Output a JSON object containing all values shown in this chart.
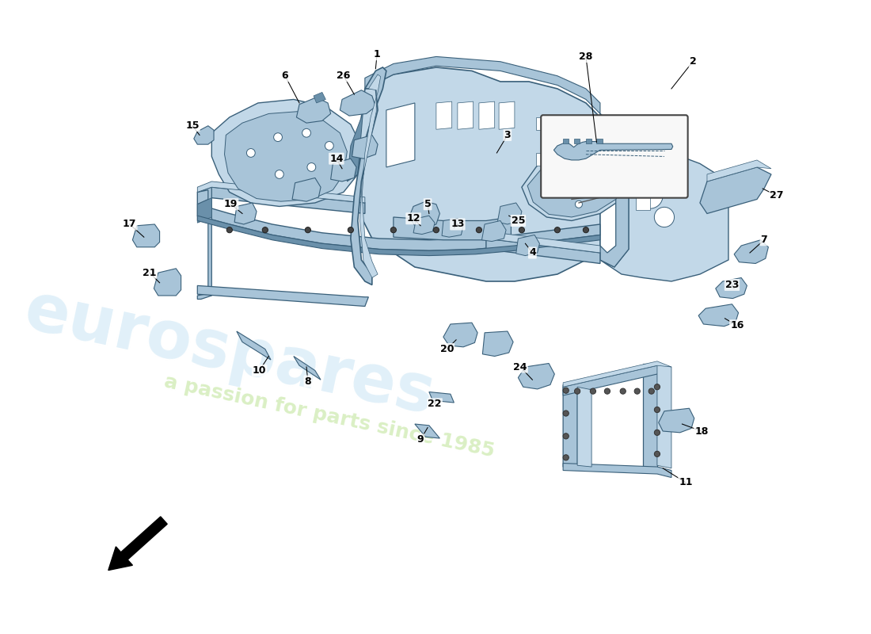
{
  "bg": "#ffffff",
  "mc": "#a8c4d8",
  "lc": "#c2d8e8",
  "dc": "#6a90aa",
  "ec": "#3a607a",
  "wm1": "#dceef8",
  "wm2": "#d4edba",
  "label_fs": 9,
  "lw_main": 0.9
}
